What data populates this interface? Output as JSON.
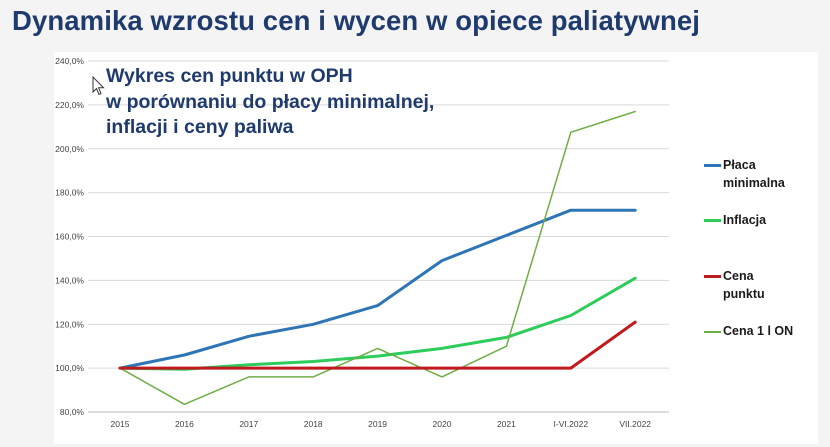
{
  "slide": {
    "title": "Dynamika wzrostu cen i wycen w opiece paliatywnej",
    "subtitle_lines": [
      "Wykres cen punktu w OPH",
      "w porównaniu do płacy minimalnej,",
      "inflacji i ceny paliwa"
    ]
  },
  "chart_data": {
    "type": "line",
    "x": [
      "2015",
      "2016",
      "2017",
      "2018",
      "2019",
      "2020",
      "2021",
      "I-VI.2022",
      "VII.2022"
    ],
    "ylim": [
      80,
      240
    ],
    "yticks": [
      "80,0%",
      "100,0%",
      "120,0%",
      "140,0%",
      "160,0%",
      "180,0%",
      "200,0%",
      "220,0%",
      "240,0%"
    ],
    "ytick_values": [
      80,
      100,
      120,
      140,
      160,
      180,
      200,
      220,
      240
    ],
    "grid": true,
    "legend_position": "right",
    "series": [
      {
        "name": "Płaca minimalna",
        "legend_lines": [
          "Płaca",
          "minimalna"
        ],
        "color": "#2e75b6",
        "width": 3,
        "values": [
          100,
          106,
          114.5,
          120,
          128.5,
          149,
          160.5,
          172,
          172
        ]
      },
      {
        "name": "Inflacja",
        "legend_lines": [
          "Inflacja"
        ],
        "color": "#2ecc5a",
        "width": 3,
        "values": [
          100,
          99.5,
          101.5,
          103,
          105.5,
          109,
          114,
          124,
          141
        ]
      },
      {
        "name": "Cena punktu",
        "legend_lines": [
          "Cena",
          "punktu"
        ],
        "color": "#c0191f",
        "width": 3,
        "values": [
          100,
          100,
          100,
          100,
          100,
          100,
          100,
          100,
          121
        ]
      },
      {
        "name": "Cena 1 l ON",
        "legend_lines": [
          "Cena 1 l ON"
        ],
        "color": "#70ad47",
        "width": 1.5,
        "values": [
          100,
          83.5,
          96,
          96,
          109,
          96,
          110,
          207.5,
          217
        ]
      }
    ]
  }
}
